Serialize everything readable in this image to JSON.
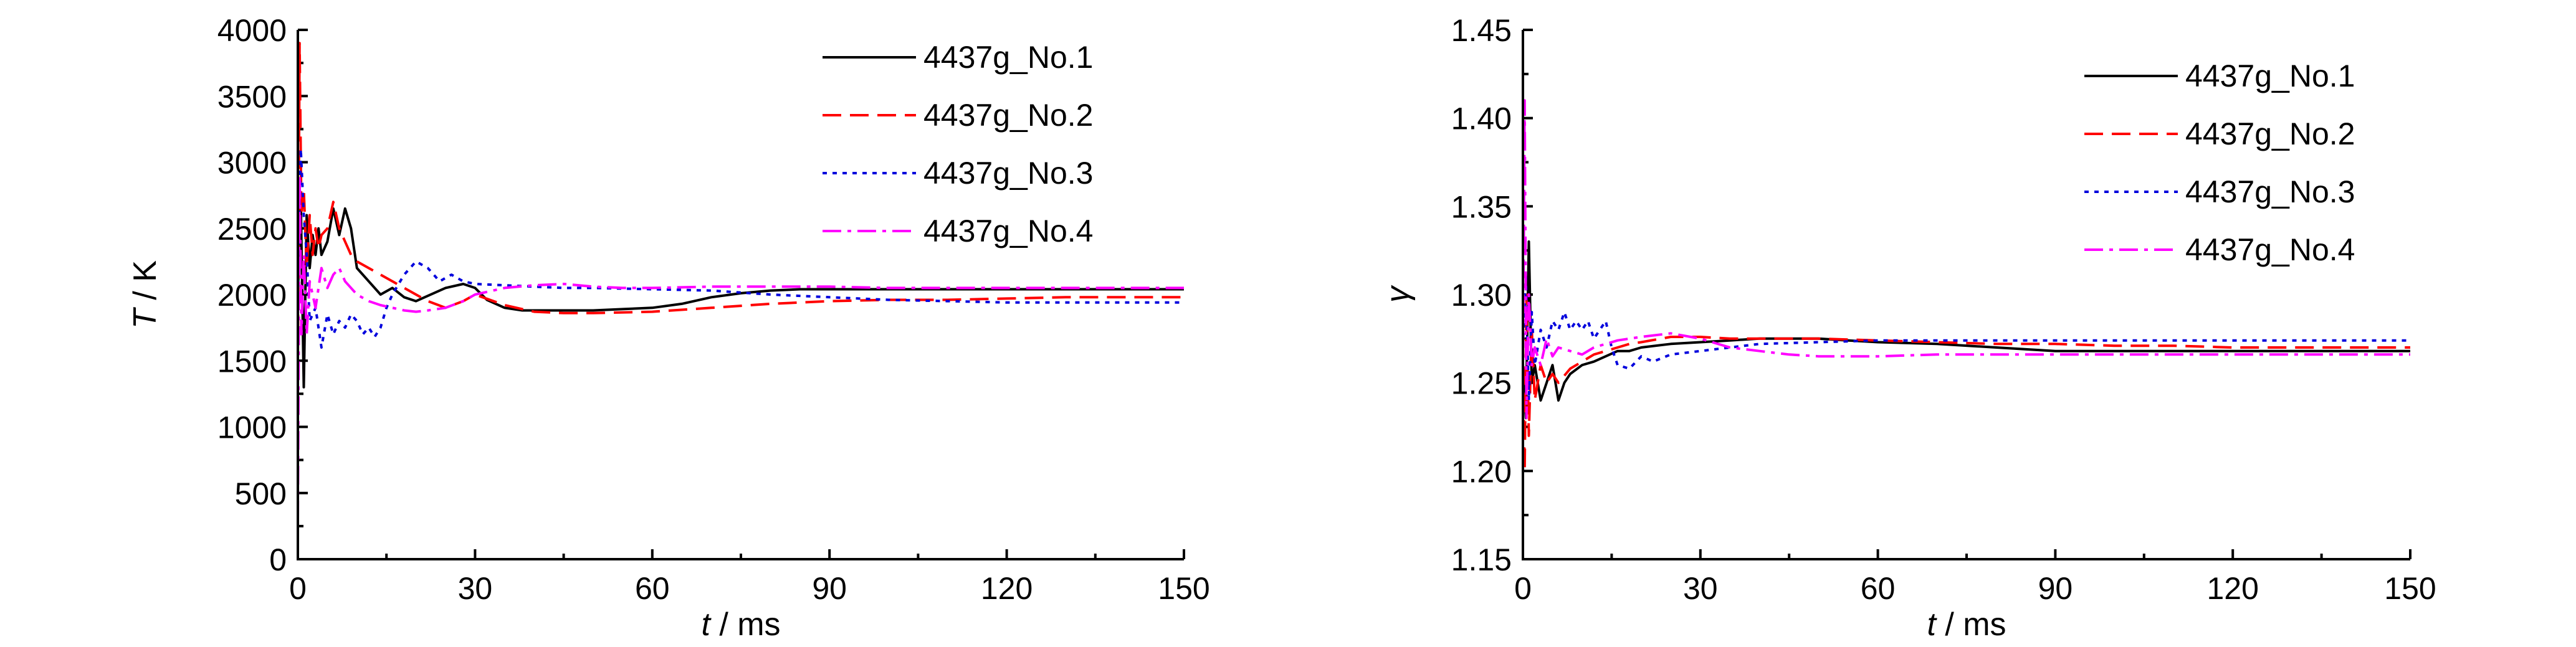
{
  "chart_data": [
    {
      "type": "line",
      "title": "",
      "xlabel_italic": "t",
      "xlabel_unit": " / ms",
      "ylabel_italic": "T",
      "ylabel_unit": " / K",
      "xlim": [
        0,
        150
      ],
      "ylim": [
        0,
        4000
      ],
      "xticks": [
        0,
        30,
        60,
        90,
        120,
        150
      ],
      "yticks": [
        0,
        500,
        1000,
        1500,
        2000,
        2500,
        3000,
        3500,
        4000
      ],
      "grid": false,
      "legend_position": "top-right",
      "series": [
        {
          "name": "4437g_No.1",
          "color": "#000000",
          "dash": "solid",
          "x": [
            0,
            0.5,
            1,
            1.5,
            2,
            2.5,
            3,
            3.5,
            4,
            5,
            6,
            7,
            8,
            9,
            10,
            12,
            14,
            16,
            18,
            20,
            22,
            25,
            28,
            30,
            32,
            35,
            38,
            40,
            45,
            50,
            55,
            60,
            65,
            70,
            75,
            80,
            85,
            90,
            100,
            110,
            120,
            130,
            140,
            150
          ],
          "y": [
            2000,
            2700,
            1300,
            2600,
            2200,
            2450,
            2300,
            2500,
            2300,
            2400,
            2650,
            2450,
            2650,
            2500,
            2200,
            2100,
            2000,
            2050,
            1980,
            1950,
            1990,
            2050,
            2080,
            2050,
            1960,
            1900,
            1880,
            1880,
            1880,
            1880,
            1890,
            1900,
            1930,
            1980,
            2010,
            2030,
            2040,
            2040,
            2040,
            2040,
            2040,
            2040,
            2040,
            2040
          ]
        },
        {
          "name": "4437g_No.2",
          "color": "#ff0000",
          "dash": "long",
          "x": [
            0,
            0.3,
            0.6,
            1,
            1.5,
            2,
            2.5,
            3,
            3.5,
            4,
            5,
            6,
            7,
            8,
            9,
            10,
            12,
            14,
            16,
            18,
            20,
            22,
            25,
            28,
            30,
            35,
            40,
            45,
            50,
            60,
            70,
            80,
            85,
            90,
            100,
            110,
            120,
            130,
            140,
            150
          ],
          "y": [
            1500,
            3900,
            2600,
            2800,
            2200,
            2600,
            2300,
            2500,
            2350,
            2450,
            2500,
            2700,
            2500,
            2400,
            2300,
            2250,
            2200,
            2150,
            2100,
            2050,
            2000,
            1950,
            1900,
            1950,
            2000,
            1920,
            1870,
            1860,
            1860,
            1870,
            1900,
            1930,
            1940,
            1950,
            1960,
            1960,
            1970,
            1980,
            1980,
            1980
          ]
        },
        {
          "name": "4437g_No.3",
          "color": "#0000dd",
          "dash": "dot",
          "x": [
            0,
            0.5,
            1,
            1.5,
            2,
            3,
            4,
            5,
            6,
            7,
            8,
            9,
            10,
            11,
            12,
            13,
            14,
            15,
            16,
            18,
            20,
            22,
            24,
            26,
            28,
            30,
            35,
            40,
            45,
            50,
            60,
            70,
            80,
            90,
            100,
            110,
            120,
            130,
            140,
            150
          ],
          "y": [
            2000,
            3100,
            2600,
            2300,
            1800,
            1900,
            1600,
            1850,
            1700,
            1800,
            1750,
            1850,
            1800,
            1700,
            1750,
            1680,
            1750,
            1900,
            2000,
            2150,
            2250,
            2200,
            2100,
            2150,
            2100,
            2080,
            2070,
            2060,
            2050,
            2050,
            2040,
            2030,
            2000,
            1980,
            1960,
            1950,
            1940,
            1940,
            1940,
            1940
          ]
        },
        {
          "name": "4437g_No.4",
          "color": "#ff00ff",
          "dash": "dashdot",
          "x": [
            0,
            0.3,
            0.6,
            1,
            1.5,
            2,
            3,
            4,
            5,
            6,
            7,
            8,
            10,
            12,
            14,
            16,
            18,
            20,
            22,
            25,
            28,
            30,
            35,
            40,
            45,
            50,
            55,
            60,
            70,
            80,
            90,
            100,
            110,
            120,
            130,
            140,
            150
          ],
          "y": [
            300,
            2900,
            1700,
            2300,
            1700,
            2100,
            1900,
            2200,
            2050,
            2150,
            2200,
            2100,
            2000,
            1950,
            1920,
            1900,
            1880,
            1870,
            1880,
            1900,
            1950,
            2000,
            2050,
            2070,
            2080,
            2060,
            2050,
            2050,
            2060,
            2060,
            2060,
            2050,
            2050,
            2050,
            2050,
            2050,
            2050
          ]
        }
      ]
    },
    {
      "type": "line",
      "title": "",
      "xlabel_italic": "t",
      "xlabel_unit": " / ms",
      "ylabel_italic": "γ",
      "ylabel_unit": "",
      "xlim": [
        0,
        150
      ],
      "ylim": [
        1.15,
        1.45
      ],
      "xticks": [
        0,
        30,
        60,
        90,
        120,
        150
      ],
      "yticks": [
        "1.15",
        "1.20",
        "1.25",
        "1.30",
        "1.35",
        "1.40",
        "1.45"
      ],
      "grid": false,
      "legend_position": "top-right",
      "series": [
        {
          "name": "4437g_No.1",
          "color": "#000000",
          "dash": "solid",
          "x": [
            0,
            0.5,
            1,
            1.5,
            2,
            3,
            4,
            5,
            6,
            7,
            8,
            10,
            12,
            14,
            16,
            18,
            20,
            25,
            30,
            35,
            40,
            45,
            50,
            55,
            60,
            70,
            80,
            90,
            100,
            110,
            120,
            130,
            140,
            150
          ],
          "y": [
            1.26,
            1.23,
            1.33,
            1.25,
            1.26,
            1.24,
            1.25,
            1.26,
            1.24,
            1.25,
            1.255,
            1.26,
            1.262,
            1.265,
            1.268,
            1.268,
            1.27,
            1.272,
            1.273,
            1.274,
            1.275,
            1.275,
            1.275,
            1.274,
            1.273,
            1.272,
            1.27,
            1.268,
            1.268,
            1.268,
            1.268,
            1.268,
            1.268,
            1.268
          ]
        },
        {
          "name": "4437g_No.2",
          "color": "#ff0000",
          "dash": "long",
          "x": [
            0,
            0.3,
            0.6,
            1,
            1.5,
            2,
            3,
            4,
            5,
            6,
            8,
            10,
            12,
            14,
            16,
            18,
            20,
            25,
            30,
            35,
            40,
            45,
            50,
            60,
            70,
            80,
            90,
            100,
            110,
            120,
            130,
            140,
            150
          ],
          "y": [
            1.26,
            1.2,
            1.3,
            1.22,
            1.28,
            1.24,
            1.26,
            1.25,
            1.255,
            1.25,
            1.258,
            1.262,
            1.266,
            1.268,
            1.27,
            1.272,
            1.273,
            1.276,
            1.276,
            1.275,
            1.275,
            1.275,
            1.275,
            1.274,
            1.273,
            1.272,
            1.272,
            1.271,
            1.271,
            1.27,
            1.27,
            1.27,
            1.27
          ]
        },
        {
          "name": "4437g_No.3",
          "color": "#0000dd",
          "dash": "dot",
          "x": [
            0,
            0.5,
            1,
            1.5,
            2,
            3,
            4,
            5,
            6,
            7,
            8,
            9,
            10,
            11,
            12,
            13,
            14,
            15,
            16,
            18,
            20,
            22,
            25,
            30,
            35,
            40,
            50,
            60,
            70,
            80,
            90,
            100,
            110,
            120,
            130,
            140,
            150
          ],
          "y": [
            1.27,
            1.31,
            1.24,
            1.29,
            1.26,
            1.28,
            1.27,
            1.285,
            1.28,
            1.29,
            1.28,
            1.285,
            1.28,
            1.285,
            1.275,
            1.28,
            1.285,
            1.27,
            1.26,
            1.258,
            1.265,
            1.262,
            1.266,
            1.268,
            1.27,
            1.272,
            1.273,
            1.274,
            1.274,
            1.274,
            1.274,
            1.274,
            1.274,
            1.274,
            1.274,
            1.274,
            1.274
          ]
        },
        {
          "name": "4437g_No.4",
          "color": "#ff00ff",
          "dash": "dashdot",
          "x": [
            0,
            0.3,
            0.6,
            1,
            1.5,
            2,
            3,
            4,
            5,
            6,
            8,
            10,
            12,
            14,
            16,
            18,
            20,
            25,
            30,
            35,
            40,
            45,
            50,
            60,
            70,
            80,
            90,
            100,
            110,
            120,
            130,
            140,
            150
          ],
          "y": [
            1.25,
            1.41,
            1.23,
            1.3,
            1.26,
            1.27,
            1.26,
            1.275,
            1.265,
            1.27,
            1.268,
            1.266,
            1.27,
            1.272,
            1.274,
            1.275,
            1.276,
            1.278,
            1.275,
            1.27,
            1.268,
            1.266,
            1.265,
            1.265,
            1.266,
            1.266,
            1.266,
            1.266,
            1.266,
            1.266,
            1.266,
            1.266,
            1.266
          ]
        }
      ]
    }
  ]
}
